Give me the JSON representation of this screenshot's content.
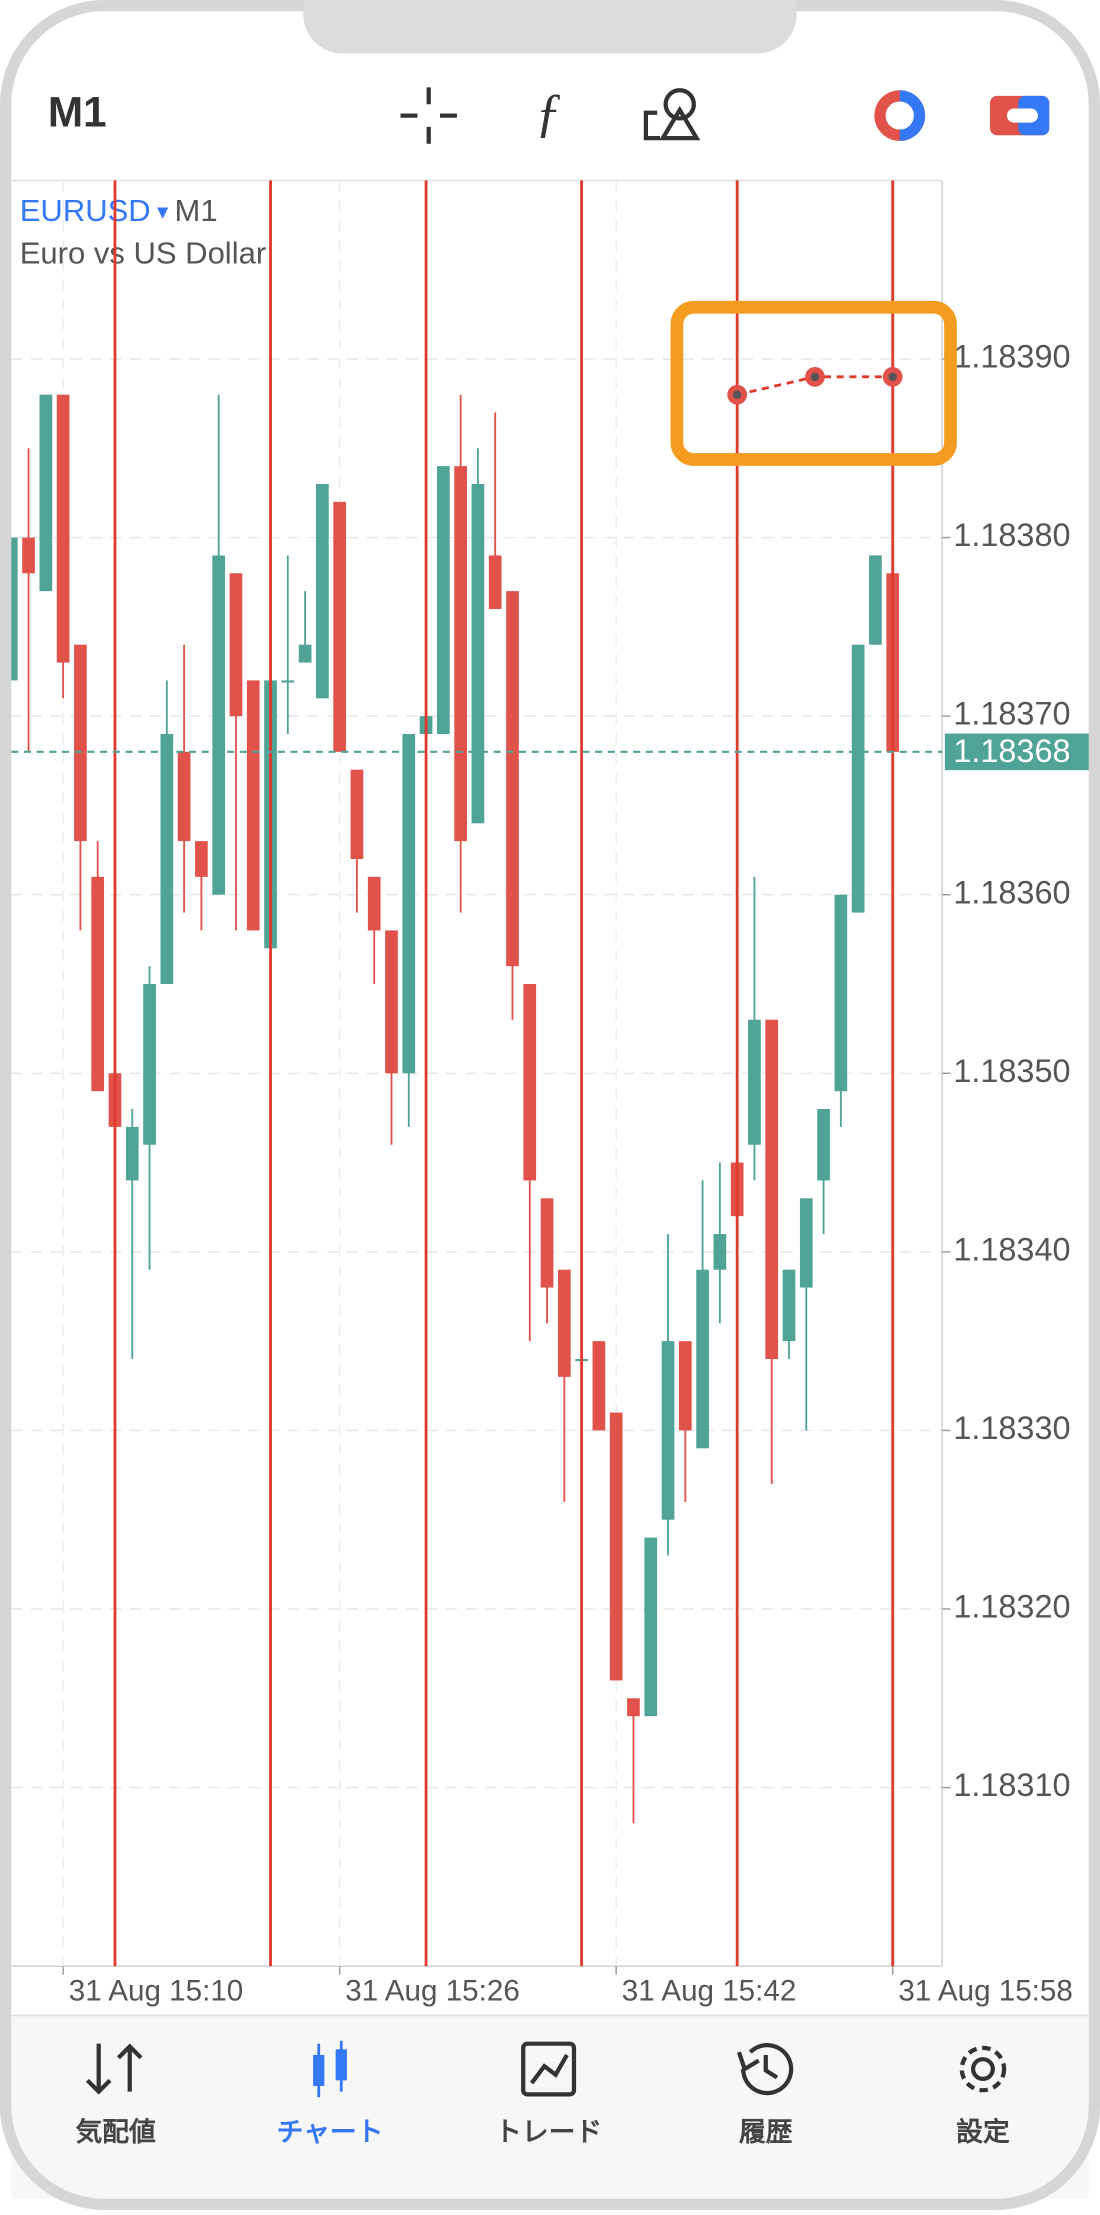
{
  "toolbar": {
    "timeframe": "M1"
  },
  "chart_data": {
    "type": "candlestick",
    "symbol": "EURUSD",
    "timeframe": "M1",
    "description": "Euro vs US Dollar",
    "open": [
      1.18372,
      1.1838,
      1.18377,
      1.18388,
      1.18374,
      1.18361,
      1.1835,
      1.18344,
      1.18346,
      1.18355,
      1.18368,
      1.18363,
      1.1836,
      1.18378,
      1.18372,
      1.18357,
      1.18372,
      1.18373,
      1.18371,
      1.18382,
      1.18367,
      1.18361,
      1.18358,
      1.1835,
      1.18369,
      1.18369,
      1.18384,
      1.18364,
      1.18379,
      1.18377,
      1.18355,
      1.18343,
      1.18339,
      1.18334,
      1.18335,
      1.18331,
      1.18315,
      1.18314,
      1.18325,
      1.18335,
      1.18329,
      1.18339,
      1.18345,
      1.18346,
      1.18353,
      1.18335,
      1.18338,
      1.18344,
      1.18349,
      1.18359,
      1.18374,
      1.18378
    ],
    "high": [
      1.1838,
      1.18385,
      1.18388,
      1.18388,
      1.18374,
      1.18363,
      1.1835,
      1.18348,
      1.18356,
      1.18372,
      1.18374,
      1.18363,
      1.18388,
      1.18378,
      1.18372,
      1.18372,
      1.18379,
      1.18377,
      1.18383,
      1.18382,
      1.18367,
      1.18361,
      1.18358,
      1.18369,
      1.1837,
      1.18384,
      1.18388,
      1.18385,
      1.18387,
      1.18377,
      1.18355,
      1.18343,
      1.18339,
      1.18334,
      1.18335,
      1.18331,
      1.18315,
      1.18324,
      1.18341,
      1.18335,
      1.18344,
      1.18345,
      1.18345,
      1.18361,
      1.18353,
      1.18339,
      1.18343,
      1.18348,
      1.1836,
      1.18374,
      1.18379,
      1.18378
    ],
    "low": [
      1.18372,
      1.18368,
      1.18377,
      1.18371,
      1.18358,
      1.18349,
      1.18347,
      1.18334,
      1.18339,
      1.18355,
      1.18359,
      1.18358,
      1.1836,
      1.18358,
      1.18358,
      1.18357,
      1.18369,
      1.18373,
      1.18371,
      1.18368,
      1.18359,
      1.18355,
      1.18346,
      1.18347,
      1.18369,
      1.18369,
      1.18359,
      1.18364,
      1.18376,
      1.18353,
      1.18335,
      1.18336,
      1.18326,
      1.18334,
      1.1833,
      1.18316,
      1.18308,
      1.18314,
      1.18323,
      1.18326,
      1.18329,
      1.18336,
      1.18342,
      1.18344,
      1.18327,
      1.18334,
      1.1833,
      1.18341,
      1.18347,
      1.18359,
      1.18374,
      1.18368
    ],
    "close": [
      1.1838,
      1.18378,
      1.18388,
      1.18373,
      1.18363,
      1.18349,
      1.18347,
      1.18347,
      1.18355,
      1.18369,
      1.18363,
      1.18361,
      1.18379,
      1.1837,
      1.18358,
      1.18372,
      1.18372,
      1.18374,
      1.18383,
      1.18368,
      1.18362,
      1.18358,
      1.1835,
      1.18369,
      1.1837,
      1.18384,
      1.18363,
      1.18383,
      1.18376,
      1.18356,
      1.18344,
      1.18338,
      1.18333,
      1.18334,
      1.1833,
      1.18316,
      1.18314,
      1.18324,
      1.18335,
      1.1833,
      1.18339,
      1.18341,
      1.18342,
      1.18353,
      1.18334,
      1.18339,
      1.18343,
      1.18348,
      1.1836,
      1.18374,
      1.18379,
      1.18368
    ],
    "up_color": "#4fa397",
    "down_color": "#e0524a",
    "ylim": [
      1.183,
      1.184
    ],
    "yticks": [
      {
        "value": 1.1839,
        "label": "1.18390"
      },
      {
        "value": 1.1838,
        "label": "1.18380"
      },
      {
        "value": 1.1837,
        "label": "1.18370"
      },
      {
        "value": 1.1836,
        "label": "1.18360"
      },
      {
        "value": 1.1835,
        "label": "1.18350"
      },
      {
        "value": 1.1834,
        "label": "1.18340"
      },
      {
        "value": 1.1833,
        "label": "1.18330"
      },
      {
        "value": 1.1832,
        "label": "1.18320"
      },
      {
        "value": 1.1831,
        "label": "1.18310"
      }
    ],
    "xticks": [
      {
        "value": 3,
        "label": "31 Aug 15:10"
      },
      {
        "value": 19,
        "label": "31 Aug 15:26"
      },
      {
        "value": 35,
        "label": "31 Aug 15:42"
      },
      {
        "value": 51,
        "label": "31 Aug 15:58"
      }
    ],
    "current_price": 1.18368,
    "grid": true,
    "vertical_lines": [
      6,
      15,
      24,
      33,
      42,
      51
    ],
    "vline_color": "#e03a2f",
    "anchor_points": {
      "x": [
        42,
        46.5,
        51
      ],
      "y": [
        1.18388,
        1.18389,
        1.18389
      ]
    }
  },
  "nav": [
    {
      "label": "気配値"
    },
    {
      "label": "チャート"
    },
    {
      "label": "トレード"
    },
    {
      "label": "履歴"
    },
    {
      "label": "設定"
    }
  ]
}
